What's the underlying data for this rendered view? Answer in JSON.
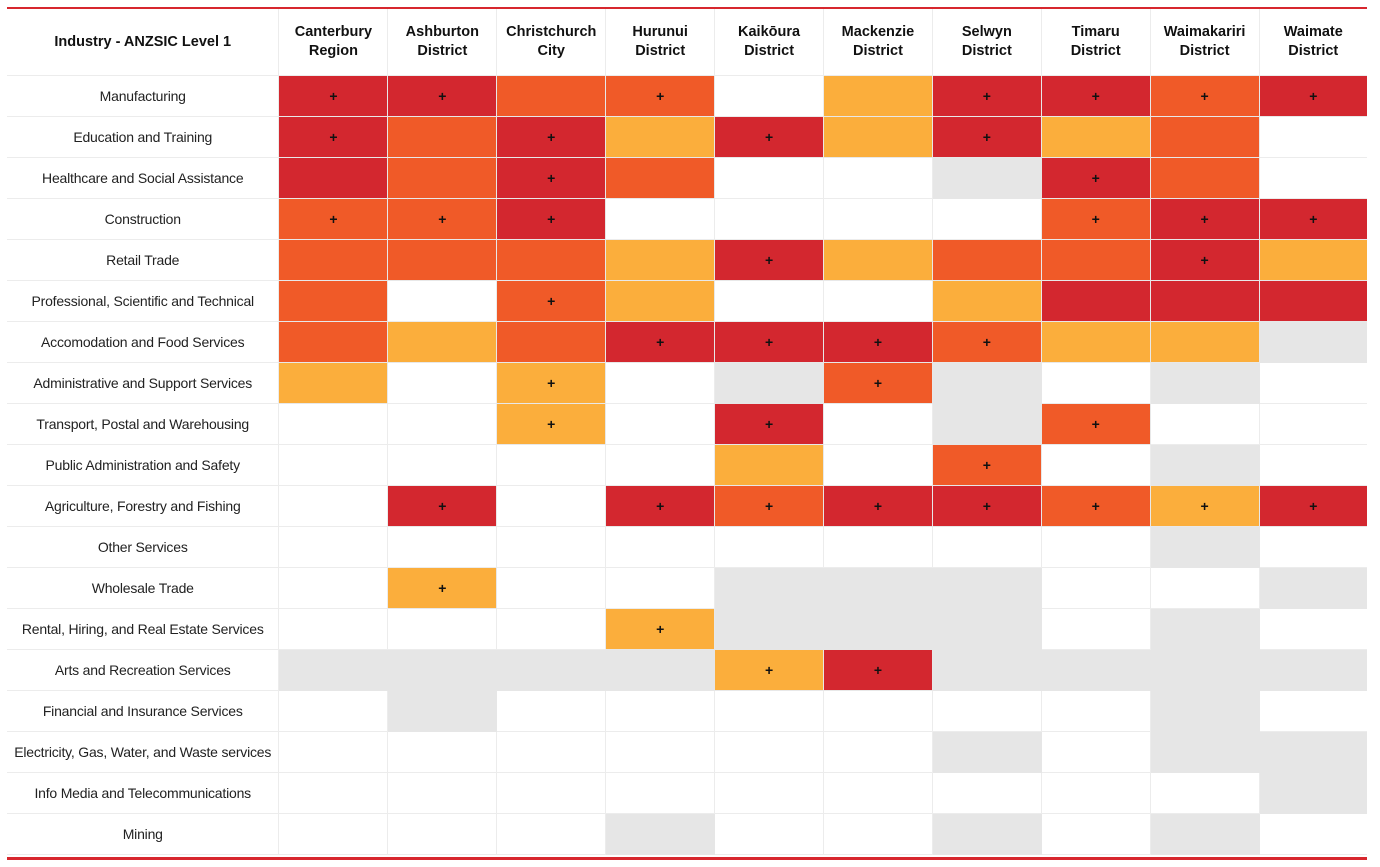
{
  "chart_data": {
    "type": "heatmap",
    "row_header": "Industry - ANZSIC Level 1",
    "columns": [
      [
        "Canterbury",
        "Region"
      ],
      [
        "Ashburton",
        "District"
      ],
      [
        "Christchurch",
        "City"
      ],
      [
        "Hurunui",
        "District"
      ],
      [
        "Kaikōura",
        "District"
      ],
      [
        "Mackenzie",
        "District"
      ],
      [
        "Selwyn",
        "District"
      ],
      [
        "Timaru",
        "District"
      ],
      [
        "Waimakariri",
        "District"
      ],
      [
        "Waimate",
        "District"
      ]
    ],
    "colors": {
      "3": "#d3272f",
      "2": "#f05a28",
      "1": "#fbae3c",
      "0": "#ffffff",
      "na": "#e6e6e6"
    },
    "plus_symbol": "+",
    "rows": [
      {
        "industry": "Manufacturing",
        "levels": [
          3,
          3,
          2,
          2,
          0,
          1,
          3,
          3,
          2,
          3
        ],
        "plus": [
          1,
          1,
          0,
          1,
          0,
          0,
          1,
          1,
          1,
          1
        ]
      },
      {
        "industry": "Education and Training",
        "levels": [
          3,
          2,
          3,
          1,
          3,
          1,
          3,
          1,
          2,
          0
        ],
        "plus": [
          1,
          0,
          1,
          0,
          1,
          0,
          1,
          0,
          0,
          0
        ]
      },
      {
        "industry": "Healthcare and Social Assistance",
        "levels": [
          3,
          2,
          3,
          2,
          0,
          0,
          "na",
          3,
          2,
          0
        ],
        "plus": [
          0,
          0,
          1,
          0,
          0,
          0,
          0,
          1,
          0,
          0
        ]
      },
      {
        "industry": "Construction",
        "levels": [
          2,
          2,
          3,
          0,
          0,
          0,
          0,
          2,
          3,
          3
        ],
        "plus": [
          1,
          1,
          1,
          0,
          0,
          0,
          0,
          1,
          1,
          1
        ]
      },
      {
        "industry": "Retail Trade",
        "levels": [
          2,
          2,
          2,
          1,
          3,
          1,
          2,
          2,
          3,
          1
        ],
        "plus": [
          0,
          0,
          0,
          0,
          1,
          0,
          0,
          0,
          1,
          0
        ]
      },
      {
        "industry": "Professional, Scientific and Technical",
        "levels": [
          2,
          0,
          2,
          1,
          0,
          0,
          1,
          3,
          3,
          3
        ],
        "plus": [
          0,
          0,
          1,
          0,
          0,
          0,
          0,
          0,
          0,
          0
        ]
      },
      {
        "industry": "Accomodation and Food Services",
        "levels": [
          2,
          1,
          2,
          3,
          3,
          3,
          2,
          1,
          1,
          "na"
        ],
        "plus": [
          0,
          0,
          0,
          1,
          1,
          1,
          1,
          0,
          0,
          0
        ]
      },
      {
        "industry": "Administrative and Support Services",
        "levels": [
          1,
          0,
          1,
          0,
          "na",
          2,
          "na",
          0,
          "na",
          0
        ],
        "plus": [
          0,
          0,
          1,
          0,
          0,
          1,
          0,
          0,
          0,
          0
        ]
      },
      {
        "industry": "Transport, Postal and Warehousing",
        "levels": [
          0,
          0,
          1,
          0,
          3,
          0,
          "na",
          2,
          0,
          0
        ],
        "plus": [
          0,
          0,
          1,
          0,
          1,
          0,
          0,
          1,
          0,
          0
        ]
      },
      {
        "industry": "Public Administration and Safety",
        "levels": [
          0,
          0,
          0,
          0,
          1,
          0,
          2,
          0,
          "na",
          0
        ],
        "plus": [
          0,
          0,
          0,
          0,
          0,
          0,
          1,
          0,
          0,
          0
        ]
      },
      {
        "industry": "Agriculture, Forestry and Fishing",
        "levels": [
          0,
          3,
          0,
          3,
          2,
          3,
          3,
          2,
          1,
          3
        ],
        "plus": [
          0,
          1,
          0,
          1,
          1,
          1,
          1,
          1,
          1,
          1
        ]
      },
      {
        "industry": "Other Services",
        "levels": [
          0,
          0,
          0,
          0,
          0,
          0,
          0,
          0,
          "na",
          0
        ],
        "plus": [
          0,
          0,
          0,
          0,
          0,
          0,
          0,
          0,
          0,
          0
        ]
      },
      {
        "industry": "Wholesale Trade",
        "levels": [
          0,
          1,
          0,
          0,
          "na",
          "na",
          "na",
          0,
          0,
          "na"
        ],
        "plus": [
          0,
          1,
          0,
          0,
          0,
          0,
          0,
          0,
          0,
          0
        ]
      },
      {
        "industry": "Rental, Hiring, and Real Estate Services",
        "levels": [
          0,
          0,
          0,
          1,
          "na",
          "na",
          "na",
          0,
          "na",
          0
        ],
        "plus": [
          0,
          0,
          0,
          1,
          0,
          0,
          0,
          0,
          0,
          0
        ]
      },
      {
        "industry": "Arts and Recreation Services",
        "levels": [
          "na",
          "na",
          "na",
          "na",
          1,
          3,
          "na",
          "na",
          "na",
          "na"
        ],
        "plus": [
          0,
          0,
          0,
          0,
          1,
          1,
          0,
          0,
          0,
          0
        ]
      },
      {
        "industry": "Financial and Insurance Services",
        "levels": [
          0,
          "na",
          0,
          0,
          0,
          0,
          0,
          0,
          "na",
          0
        ],
        "plus": [
          0,
          0,
          0,
          0,
          0,
          0,
          0,
          0,
          0,
          0
        ]
      },
      {
        "industry": "Electricity, Gas, Water, and Waste services",
        "levels": [
          0,
          0,
          0,
          0,
          0,
          0,
          "na",
          0,
          "na",
          "na"
        ],
        "plus": [
          0,
          0,
          0,
          0,
          0,
          0,
          0,
          0,
          0,
          0
        ]
      },
      {
        "industry": "Info Media and Telecommunications",
        "levels": [
          0,
          0,
          0,
          0,
          0,
          0,
          0,
          0,
          0,
          "na"
        ],
        "plus": [
          0,
          0,
          0,
          0,
          0,
          0,
          0,
          0,
          0,
          0
        ]
      },
      {
        "industry": "Mining",
        "levels": [
          0,
          0,
          0,
          "na",
          0,
          0,
          "na",
          0,
          "na",
          0
        ],
        "plus": [
          0,
          0,
          0,
          0,
          0,
          0,
          0,
          0,
          0,
          0
        ]
      }
    ]
  }
}
